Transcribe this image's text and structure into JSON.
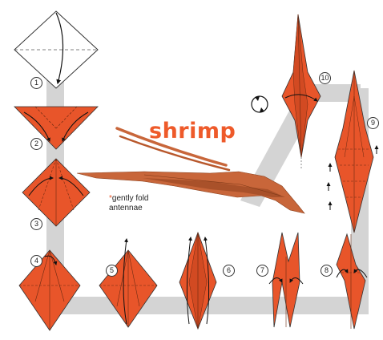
{
  "title": "shrimp",
  "note": {
    "mark": "*",
    "line1": "gently fold",
    "line2": "antennae"
  },
  "steps": [
    "1",
    "2",
    "3",
    "4",
    "5",
    "6",
    "7",
    "8",
    "9",
    "10"
  ],
  "colors": {
    "paper": "#e8552a",
    "paper_dark": "#b8401c",
    "model": "#c8663a",
    "path": "#d4d4d4",
    "title": "#ee5a2a"
  },
  "icons": {
    "rotate": "rotate-icon"
  }
}
